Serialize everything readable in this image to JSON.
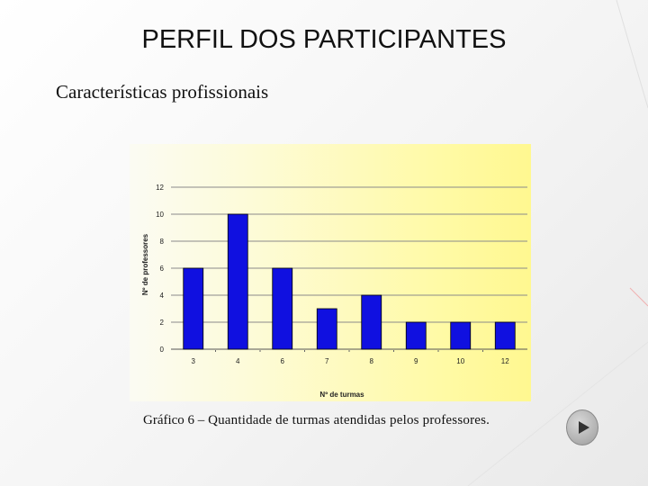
{
  "slide": {
    "title": "PERFIL DOS PARTICIPANTES",
    "subtitle": "Características profissionais",
    "caption_label": "Gráfico 6 –",
    "caption_text": "Quantidade de turmas atendidas pelos professores."
  },
  "nav": {
    "next_icon": "play-icon"
  },
  "colors": {
    "bar": "#1010e0",
    "bar_stroke": "#000000",
    "grid": "#8a8a8a"
  },
  "chart_data": {
    "type": "bar",
    "categories": [
      "3",
      "4",
      "6",
      "7",
      "8",
      "9",
      "10",
      "12"
    ],
    "values": [
      6,
      10,
      6,
      3,
      4,
      2,
      2,
      2
    ],
    "title": "",
    "xlabel": "Nº de turmas",
    "ylabel": "Nº de professores",
    "ylim": [
      0,
      12
    ],
    "yticks": [
      0,
      2,
      4,
      6,
      8,
      10,
      12
    ],
    "grid": true,
    "legend": "none"
  }
}
